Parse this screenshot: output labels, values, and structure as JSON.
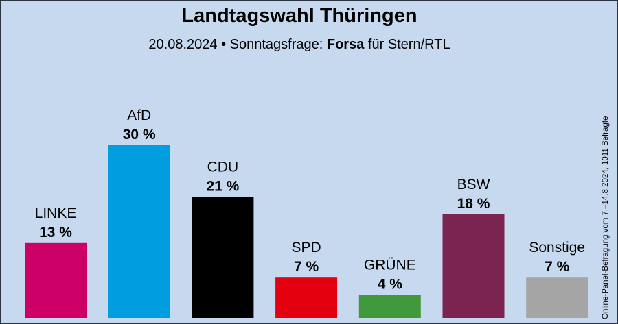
{
  "header": {
    "title": "Landtagswahl Thüringen",
    "subtitle_prefix": "20.08.2024 • Sonntagsfrage:",
    "subtitle_institute": "Forsa",
    "subtitle_suffix": "für Stern/RTL"
  },
  "side_note": "Online-Panel-Befragung vom 7.–14.8.2024, 1011 Befragte",
  "colors": {
    "background": "#c6d9ef"
  },
  "chart_data": {
    "type": "bar",
    "title": "Landtagswahl Thüringen",
    "categories": [
      "LINKE",
      "AfD",
      "CDU",
      "SPD",
      "GRÜNE",
      "BSW",
      "Sonstige"
    ],
    "values": [
      13,
      30,
      21,
      7,
      4,
      18,
      7
    ],
    "value_labels": [
      "13 %",
      "30 %",
      "21 %",
      "7 %",
      "4 %",
      "18 %",
      "7 %"
    ],
    "colors": [
      "#cc0066",
      "#009ee0",
      "#000000",
      "#e3000f",
      "#409a3c",
      "#7b2450",
      "#a5a5a5"
    ],
    "unit": "%",
    "ylim": [
      0,
      30
    ],
    "grid": false,
    "legend": "none"
  }
}
